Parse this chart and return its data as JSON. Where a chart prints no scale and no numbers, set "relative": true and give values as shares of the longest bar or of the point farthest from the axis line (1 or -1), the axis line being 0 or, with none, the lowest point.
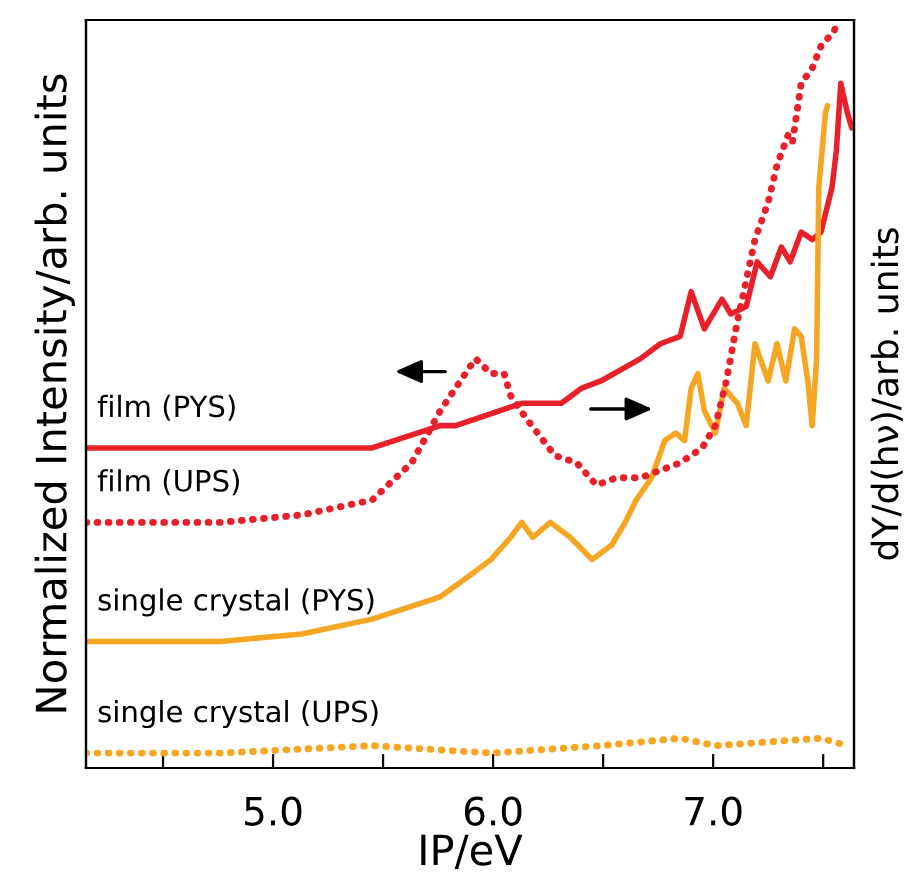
{
  "chart_data": {
    "type": "line",
    "relative": true,
    "xlabel": "IP/eV",
    "ylabel": "Normalized Intensity/arb. units",
    "y2label": "dY/d(hν)/arb. units",
    "xlim": [
      4.15,
      7.64
    ],
    "xticks": [
      {
        "value": 4.5,
        "label": null
      },
      {
        "value": 5.0,
        "label": "5.0"
      },
      {
        "value": 5.5,
        "label": null
      },
      {
        "value": 6.0,
        "label": "6.0"
      },
      {
        "value": 6.5,
        "label": null
      },
      {
        "value": 7.0,
        "label": "7.0"
      },
      {
        "value": 7.5,
        "label": null
      }
    ],
    "grid": false,
    "legend": false,
    "marker": "none",
    "series": [
      {
        "name": "film (PYS)",
        "color": "#e8202a",
        "line_style": "solid",
        "x": [
          4.15,
          4.76,
          5.45,
          5.76,
          5.83,
          6.13,
          6.31,
          6.4,
          6.49,
          6.67,
          6.76,
          6.85,
          6.9,
          6.96,
          7.04,
          7.08,
          7.15,
          7.2,
          7.26,
          7.31,
          7.35,
          7.4,
          7.45,
          7.49,
          7.54,
          7.56,
          7.58,
          7.61,
          7.63
        ],
        "values": [
          0.43,
          0.43,
          0.43,
          0.46,
          0.46,
          0.49,
          0.49,
          0.51,
          0.52,
          0.55,
          0.57,
          0.58,
          0.64,
          0.59,
          0.63,
          0.61,
          0.62,
          0.68,
          0.66,
          0.7,
          0.68,
          0.72,
          0.71,
          0.72,
          0.78,
          0.83,
          0.92,
          0.88,
          0.86
        ]
      },
      {
        "name": "film (UPS)",
        "color": "#e8202a",
        "line_style": "dotted",
        "axis": "y2",
        "x": [
          4.15,
          4.76,
          5.13,
          5.45,
          5.63,
          5.76,
          5.92,
          5.99,
          6.05,
          6.08,
          6.15,
          6.28,
          6.38,
          6.47,
          6.56,
          6.67,
          6.76,
          6.85,
          6.95,
          7.01,
          7.06,
          7.11,
          7.19,
          7.25,
          7.29,
          7.34,
          7.36,
          7.4,
          7.45,
          7.49,
          7.55,
          7.56
        ],
        "values": [
          0.33,
          0.33,
          0.34,
          0.36,
          0.41,
          0.48,
          0.55,
          0.53,
          0.53,
          0.5,
          0.47,
          0.42,
          0.41,
          0.38,
          0.39,
          0.39,
          0.4,
          0.41,
          0.43,
          0.46,
          0.52,
          0.6,
          0.71,
          0.76,
          0.81,
          0.85,
          0.84,
          0.92,
          0.94,
          0.97,
          0.99,
          1.0
        ]
      },
      {
        "name": "single crystal (PYS)",
        "color": "#f5a623",
        "line_style": "solid",
        "x": [
          4.15,
          4.76,
          5.13,
          5.45,
          5.76,
          5.9,
          5.99,
          6.08,
          6.13,
          6.18,
          6.26,
          6.35,
          6.45,
          6.54,
          6.6,
          6.65,
          6.72,
          6.78,
          6.83,
          6.87,
          6.9,
          6.93,
          6.96,
          7.01,
          7.05,
          7.11,
          7.15,
          7.19,
          7.25,
          7.29,
          7.33,
          7.37,
          7.4,
          7.43,
          7.45,
          7.47,
          7.48,
          7.51,
          7.52
        ],
        "values": [
          0.17,
          0.17,
          0.18,
          0.2,
          0.23,
          0.26,
          0.28,
          0.31,
          0.33,
          0.31,
          0.33,
          0.31,
          0.28,
          0.3,
          0.33,
          0.36,
          0.39,
          0.44,
          0.45,
          0.44,
          0.51,
          0.53,
          0.48,
          0.45,
          0.51,
          0.49,
          0.46,
          0.57,
          0.52,
          0.57,
          0.52,
          0.59,
          0.58,
          0.52,
          0.46,
          0.55,
          0.78,
          0.88,
          0.89
        ]
      },
      {
        "name": "single crystal (UPS)",
        "color": "#f5a623",
        "line_style": "dotted",
        "axis": "y2",
        "x": [
          4.15,
          4.76,
          5.45,
          5.99,
          6.49,
          6.85,
          7.01,
          7.49,
          7.61
        ],
        "values": [
          0.02,
          0.02,
          0.03,
          0.02,
          0.03,
          0.04,
          0.03,
          0.04,
          0.03
        ]
      }
    ]
  }
}
